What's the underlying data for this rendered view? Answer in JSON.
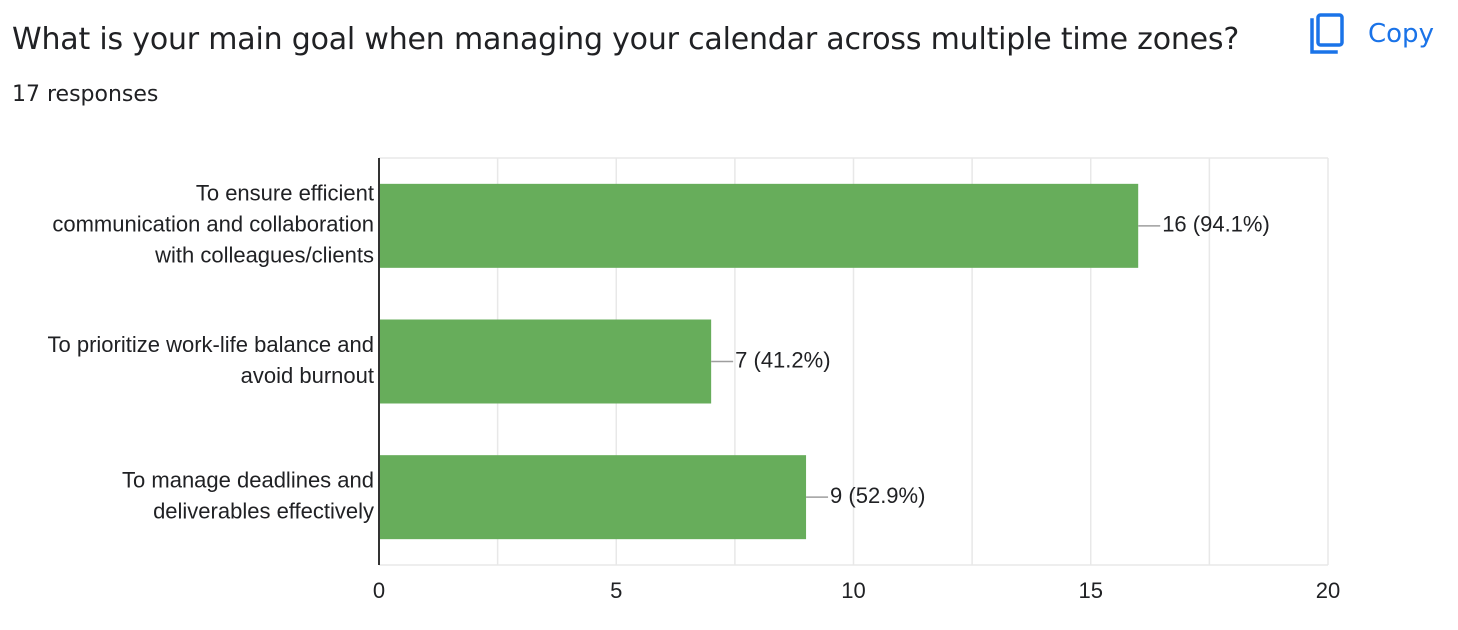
{
  "header": {
    "title": "What is your main goal when managing your calendar across multiple time zones?",
    "responses": "17 responses",
    "copy_label": "Copy",
    "copy_icon": "copy-icon"
  },
  "colors": {
    "bar": "#67ad5b",
    "accent": "#1a73e8",
    "grid": "#e8e8e8",
    "axis": "#333333"
  },
  "chart_data": {
    "type": "bar",
    "orientation": "horizontal",
    "categories": [
      [
        "To ensure efficient",
        "communication and collaboration",
        "with colleagues/clients"
      ],
      [
        "To prioritize work-life balance and",
        "avoid burnout"
      ],
      [
        "To manage deadlines and",
        "deliverables effectively"
      ]
    ],
    "values": [
      16,
      7,
      9
    ],
    "data_labels": [
      "16 (94.1%)",
      "7 (41.2%)",
      "9 (52.9%)"
    ],
    "xlim": [
      0,
      20
    ],
    "xticks": [
      0,
      5,
      10,
      15,
      20
    ],
    "grid": true
  }
}
